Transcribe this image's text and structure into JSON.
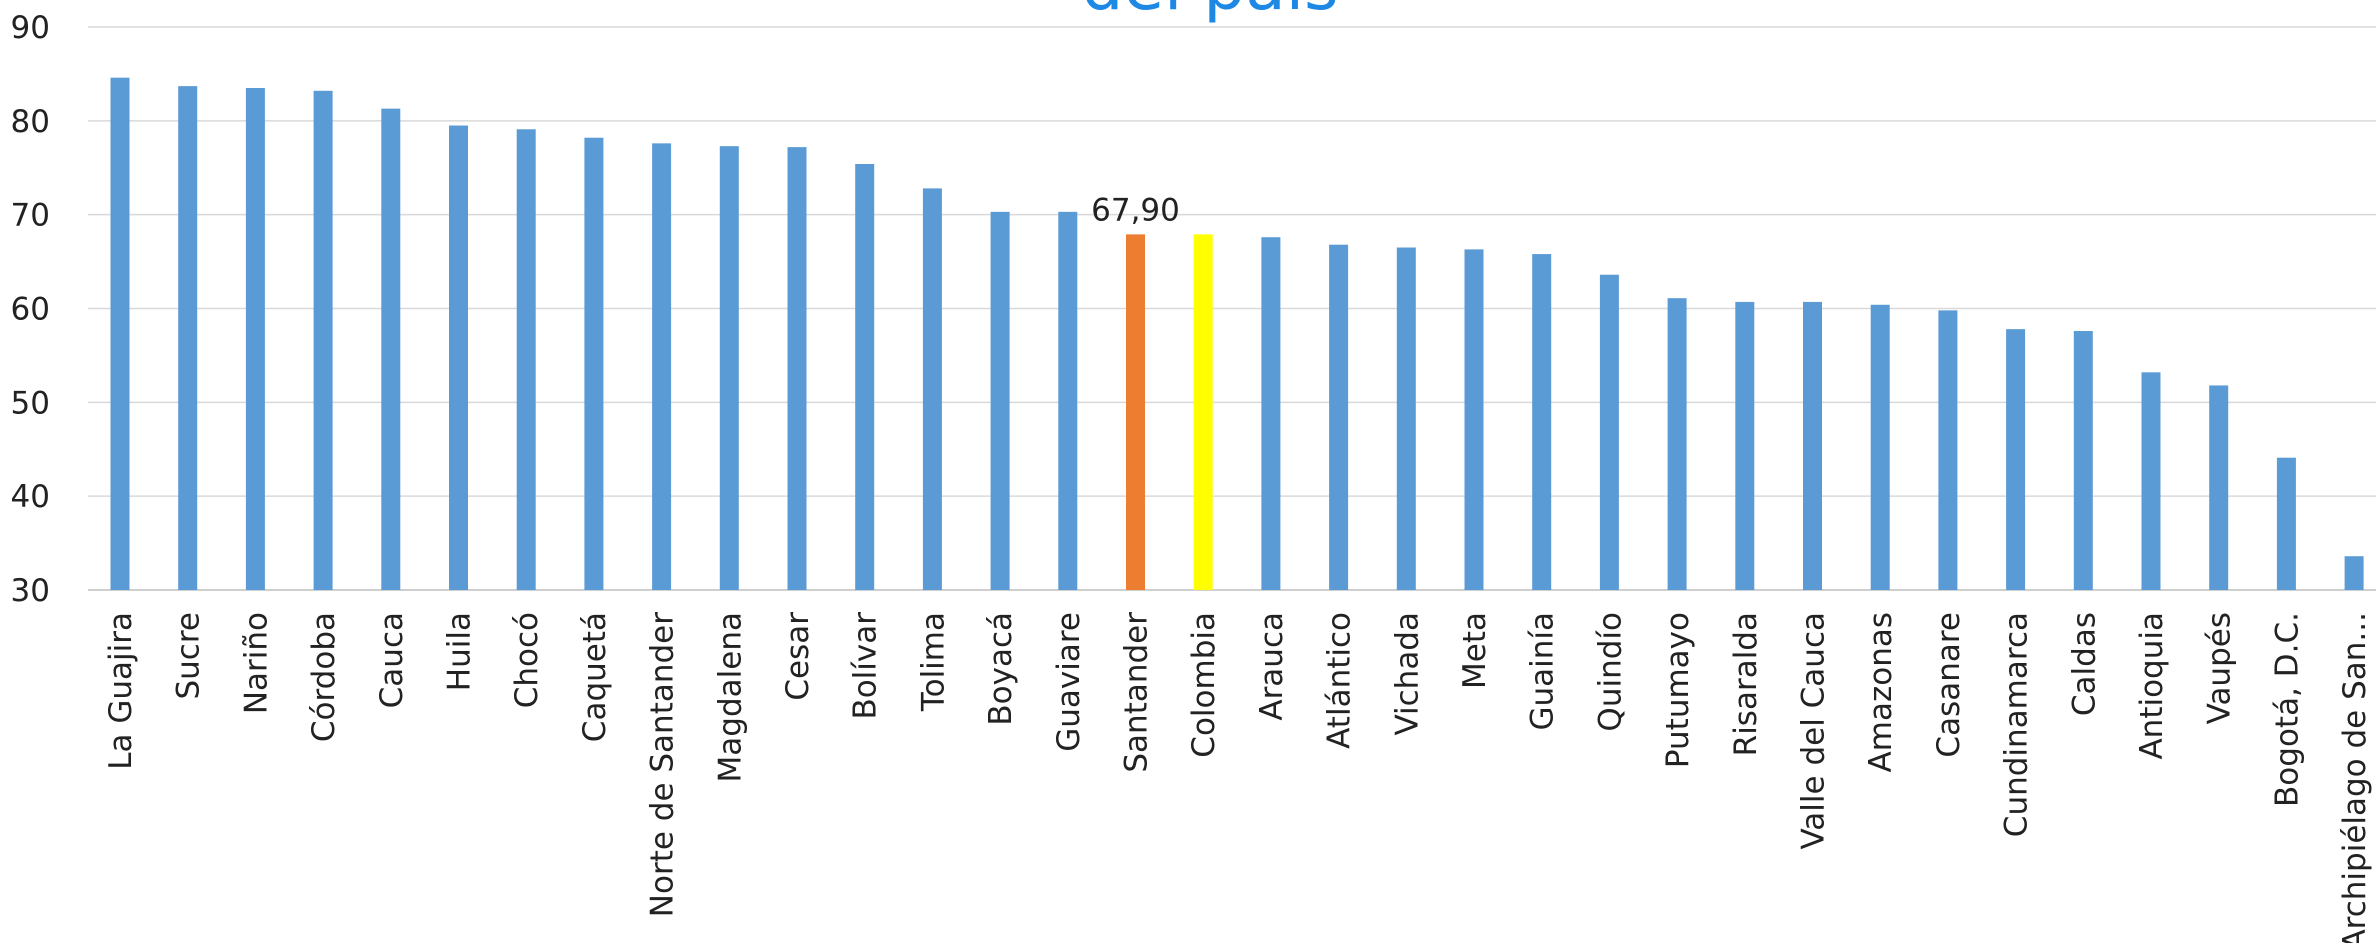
{
  "chart_data": {
    "type": "bar",
    "title": "del país",
    "xlabel": "",
    "ylabel": "",
    "ylim": [
      30,
      90
    ],
    "yticks": [
      30,
      40,
      50,
      60,
      70,
      80,
      90
    ],
    "grid": true,
    "legend": "none",
    "categories": [
      "La Guajira",
      "Sucre",
      "Nariño",
      "Córdoba",
      "Cauca",
      "Huila",
      "Chocó",
      "Caquetá",
      "Norte de Santander",
      "Magdalena",
      "Cesar",
      "Bolívar",
      "Tolima",
      "Boyacá",
      "Guaviare",
      "Santander",
      "Colombia",
      "Arauca",
      "Atlántico",
      "Vichada",
      "Meta",
      "Guainía",
      "Quindío",
      "Putumayo",
      "Risaralda",
      "Valle del Cauca",
      "Amazonas",
      "Casanare",
      "Cundinamarca",
      "Caldas",
      "Antioquia",
      "Vaupés",
      "Bogotá, D.C.",
      "Archipiélago de San..."
    ],
    "values": [
      84.6,
      83.7,
      83.5,
      83.2,
      81.3,
      79.5,
      79.1,
      78.2,
      77.6,
      77.3,
      77.2,
      75.4,
      72.8,
      70.3,
      70.3,
      67.9,
      67.9,
      67.6,
      66.8,
      66.5,
      66.3,
      65.8,
      63.6,
      61.1,
      60.7,
      60.7,
      60.4,
      59.8,
      57.8,
      57.6,
      53.2,
      51.8,
      44.1,
      33.6
    ],
    "bar_colors": {
      "default": "#5b9bd5",
      "Santander": "#ed7d31",
      "Colombia": "#ffff00"
    },
    "data_labels": [
      {
        "category": "Santander",
        "text": "67,90"
      }
    ]
  }
}
